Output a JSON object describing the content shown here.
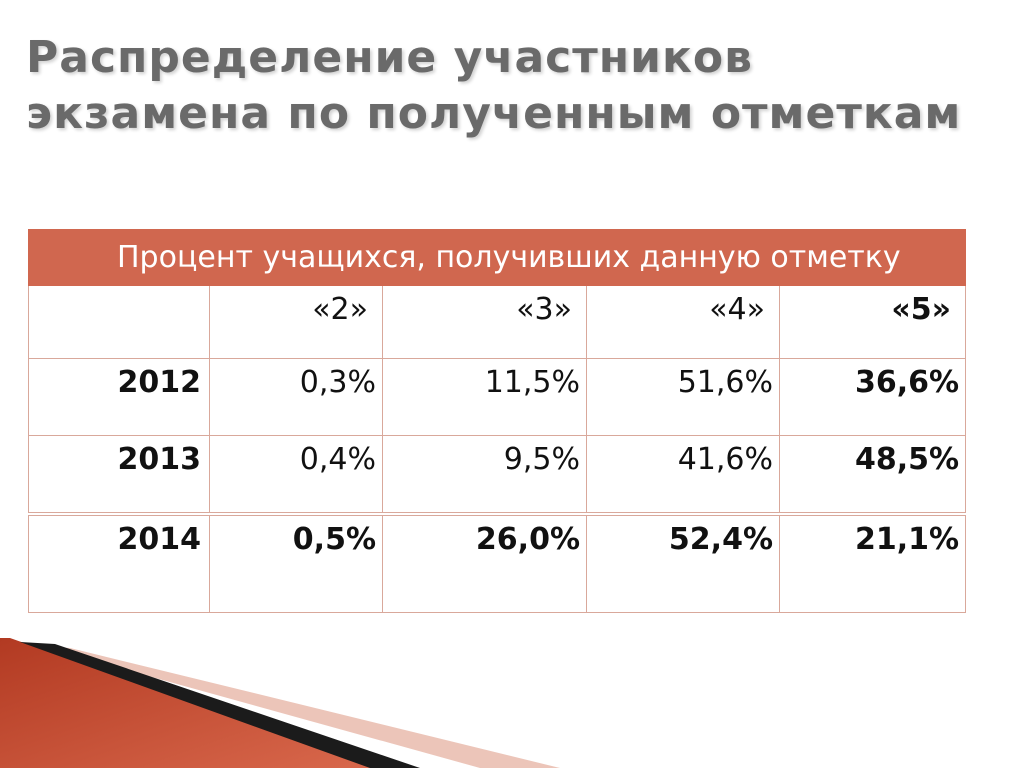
{
  "slide": {
    "title_line1": "Распределение участников",
    "title_line2": "экзамена по полученным отметкам"
  },
  "table": {
    "header": "Процент учащихся, получивших данную отметку",
    "grades": [
      "«2»",
      "«3»",
      "«4»",
      "«5»"
    ],
    "rows": [
      {
        "year": "2012",
        "values": [
          "0,3%",
          "11,5%",
          "51,6%",
          "36,6%"
        ]
      },
      {
        "year": "2013",
        "values": [
          "0,4%",
          "9,5%",
          "41,6%",
          "48,5%"
        ]
      },
      {
        "year": "2014",
        "values": [
          "0,5%",
          "26,0%",
          "52,4%",
          "21,1%"
        ]
      }
    ]
  },
  "colors": {
    "header_bg": "#d0674f",
    "title": "#6a6a6a",
    "accent_red": "#c94a2f"
  }
}
